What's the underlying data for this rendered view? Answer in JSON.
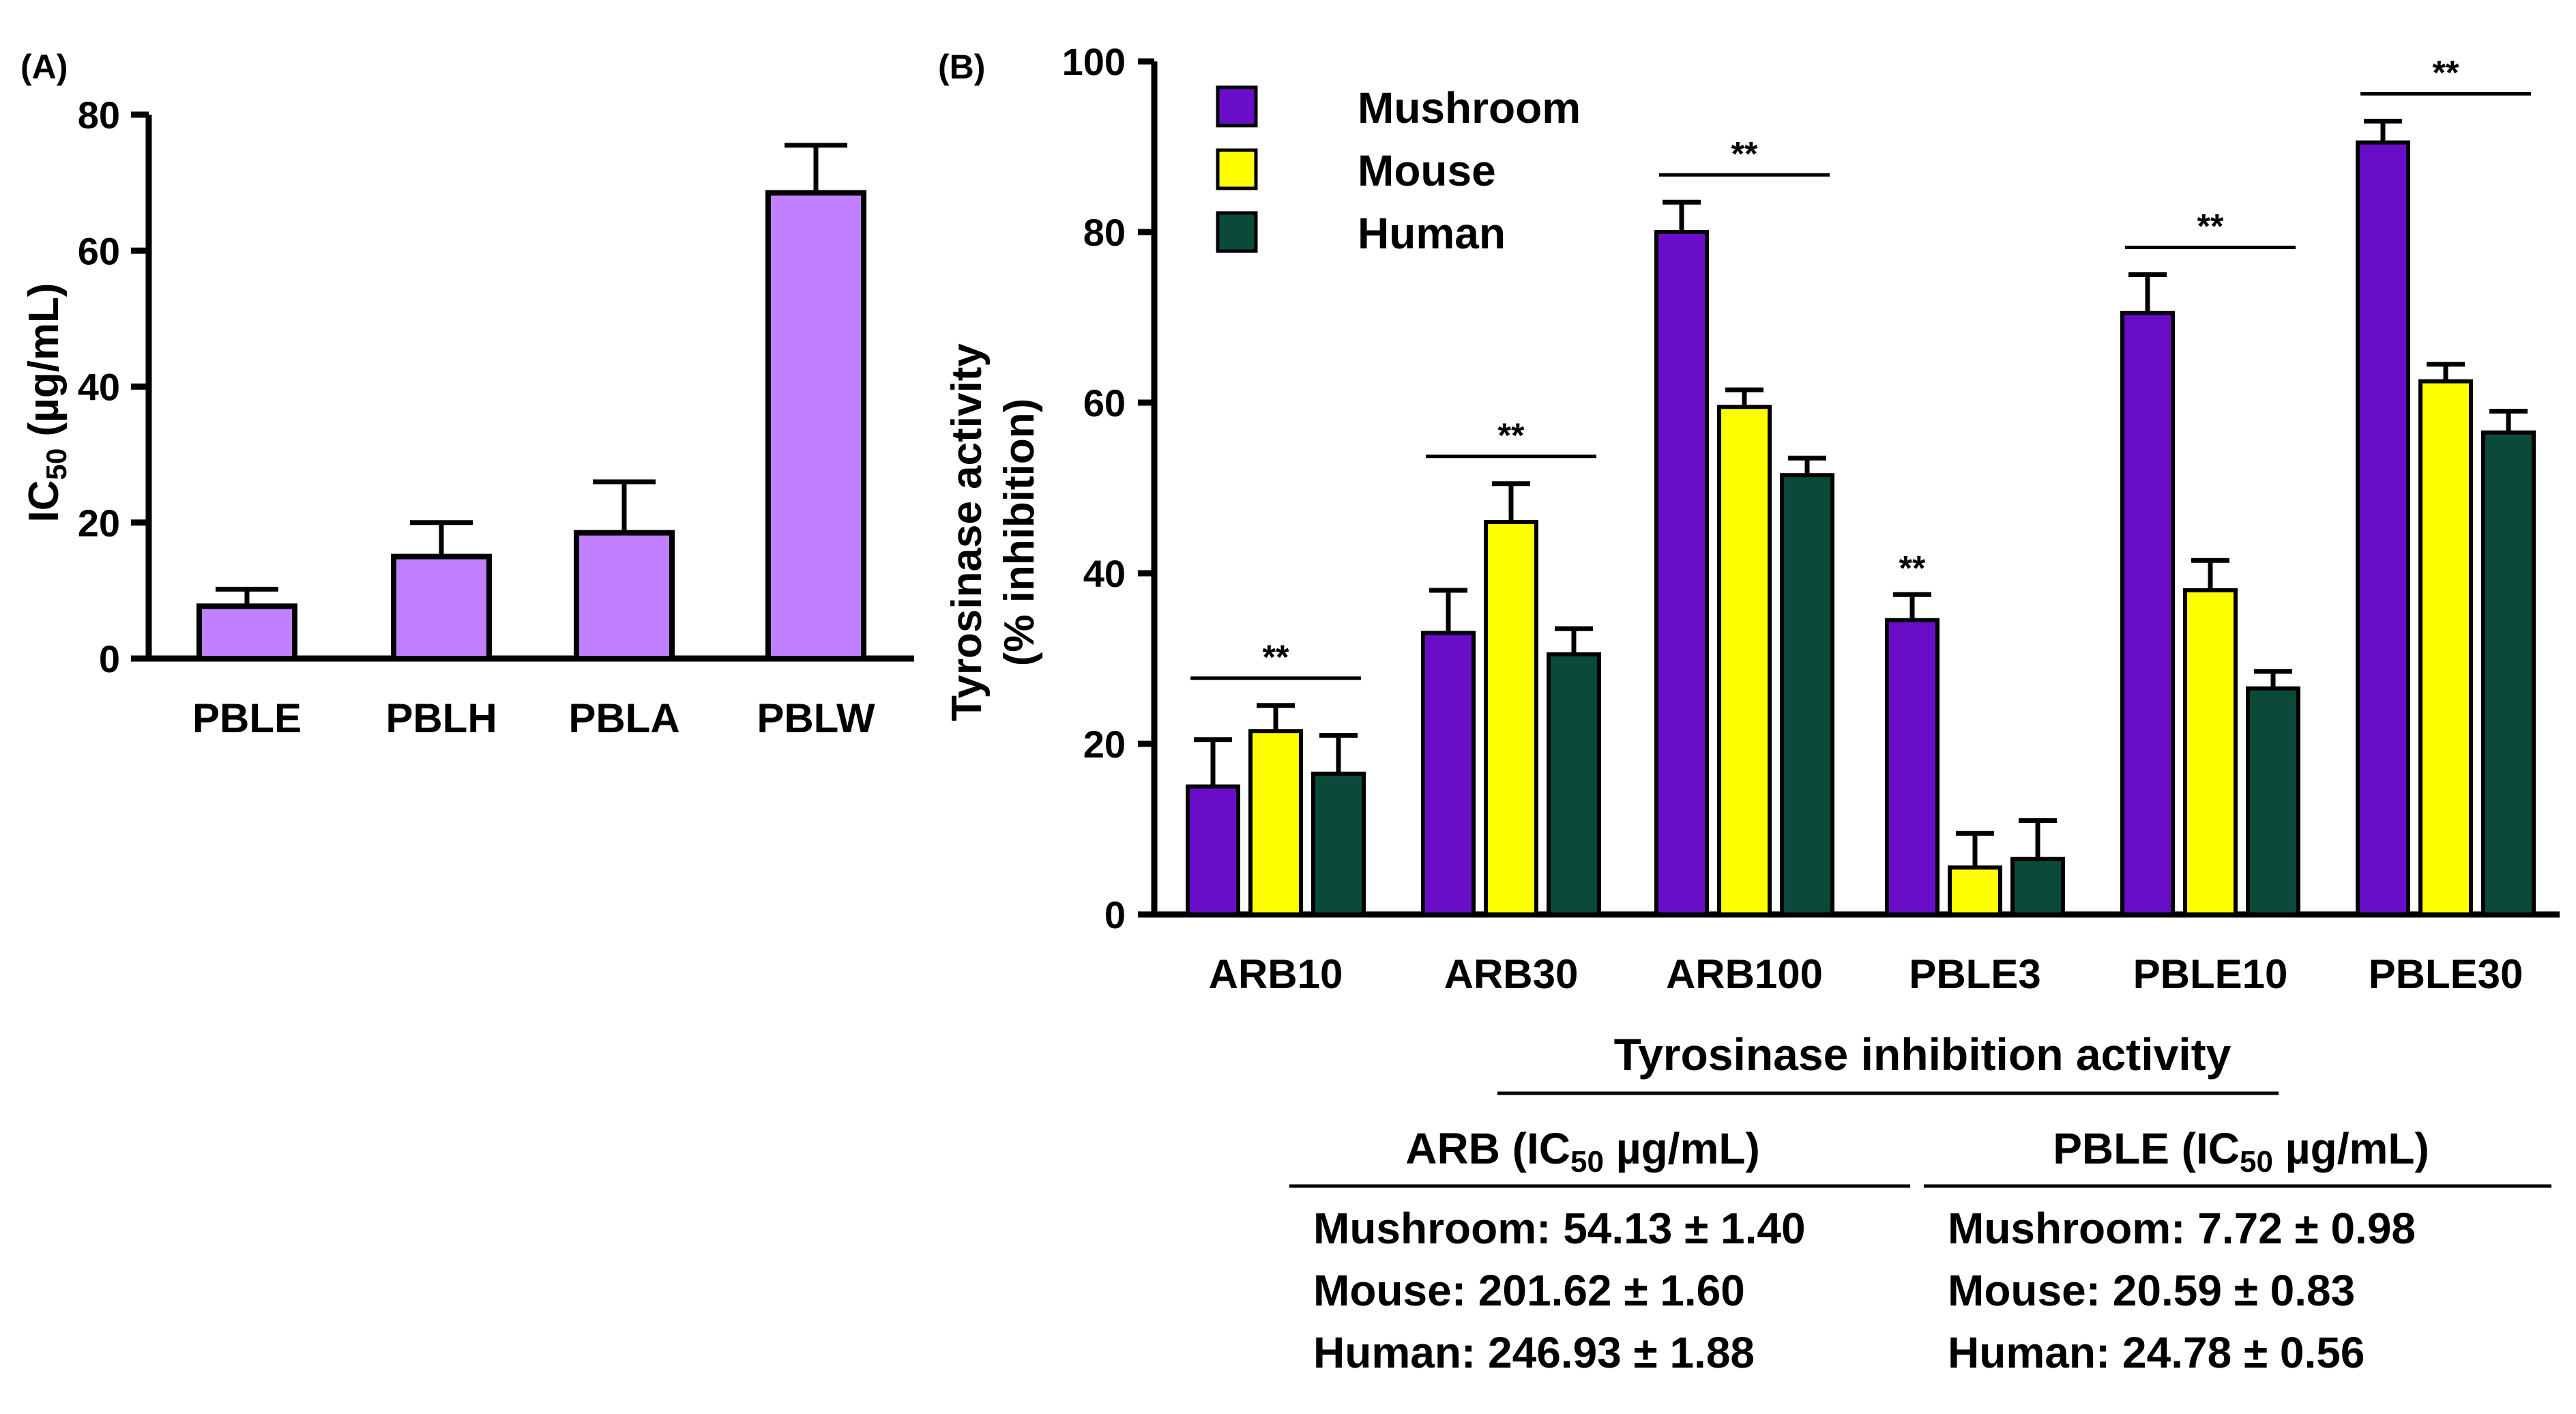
{
  "colors": {
    "panel_a_bar": "#C080FF",
    "mushroom": "#6A0DC8",
    "mouse": "#FFFF00",
    "human": "#0B4A3A"
  },
  "chart_data": [
    {
      "type": "bar",
      "panel_label": "(A)",
      "categories": [
        "PBLE",
        "PBLH",
        "PBLA",
        "PBLW"
      ],
      "values": [
        7.7,
        15.0,
        18.5,
        68.5
      ],
      "errors": [
        2.5,
        5.0,
        7.5,
        7.0
      ],
      "ylabel_prefix": "IC",
      "ylabel_sub": "50",
      "ylabel_suffix": " (µg/mL)",
      "ylim": [
        0,
        80
      ],
      "yticks": [
        0,
        20,
        40,
        60,
        80
      ],
      "grid": false
    },
    {
      "type": "bar",
      "panel_label": "(B)",
      "categories": [
        "ARB10",
        "ARB30",
        "ARB100",
        "PBLE3",
        "PBLE10",
        "PBLE30"
      ],
      "series": [
        {
          "name": "Mushroom",
          "values": [
            15,
            33,
            80,
            34.5,
            70.5,
            90.5
          ],
          "errors": [
            5.5,
            5,
            3.5,
            3,
            4.5,
            2.5
          ]
        },
        {
          "name": "Mouse",
          "values": [
            21.5,
            46,
            59.5,
            5.5,
            38,
            62.5
          ],
          "errors": [
            3,
            4.5,
            2,
            4,
            3.5,
            2
          ]
        },
        {
          "name": "Human",
          "values": [
            16.5,
            30.5,
            51.5,
            6.5,
            26.5,
            56.5
          ],
          "errors": [
            4.5,
            3,
            2,
            4.5,
            2,
            2.5
          ]
        }
      ],
      "ylabel_line1": "Tyrosinase activity",
      "ylabel_line2": "(% inhibition)",
      "ylim": [
        0,
        100
      ],
      "yticks": [
        0,
        20,
        40,
        60,
        80,
        100
      ],
      "legend_position": "top-left",
      "grid": false,
      "annotations": [
        {
          "text": "**",
          "group": "ARB10",
          "type": "bracket"
        },
        {
          "text": "**",
          "group": "ARB30",
          "type": "bracket"
        },
        {
          "text": "**",
          "group": "ARB100",
          "type": "bracket"
        },
        {
          "text": "**",
          "group": "PBLE3",
          "type": "bar",
          "series": "Mushroom"
        },
        {
          "text": "**",
          "group": "PBLE10",
          "type": "bracket"
        },
        {
          "text": "**",
          "group": "PBLE30",
          "type": "bracket"
        }
      ]
    }
  ],
  "table": {
    "title": "Tyrosinase inhibition activity",
    "sub": "50",
    "arb": {
      "head_prefix": "ARB (IC",
      "head_suffix": " µg/mL)",
      "rows": [
        "Mushroom: 54.13 ± 1.40",
        "Mouse: 201.62 ± 1.60",
        "Human: 246.93 ± 1.88"
      ]
    },
    "pble": {
      "head_prefix": "PBLE (IC",
      "head_suffix": " µg/mL)",
      "rows": [
        "Mushroom: 7.72 ± 0.98",
        "Mouse: 20.59 ± 0.83",
        "Human: 24.78 ± 0.56"
      ]
    }
  }
}
